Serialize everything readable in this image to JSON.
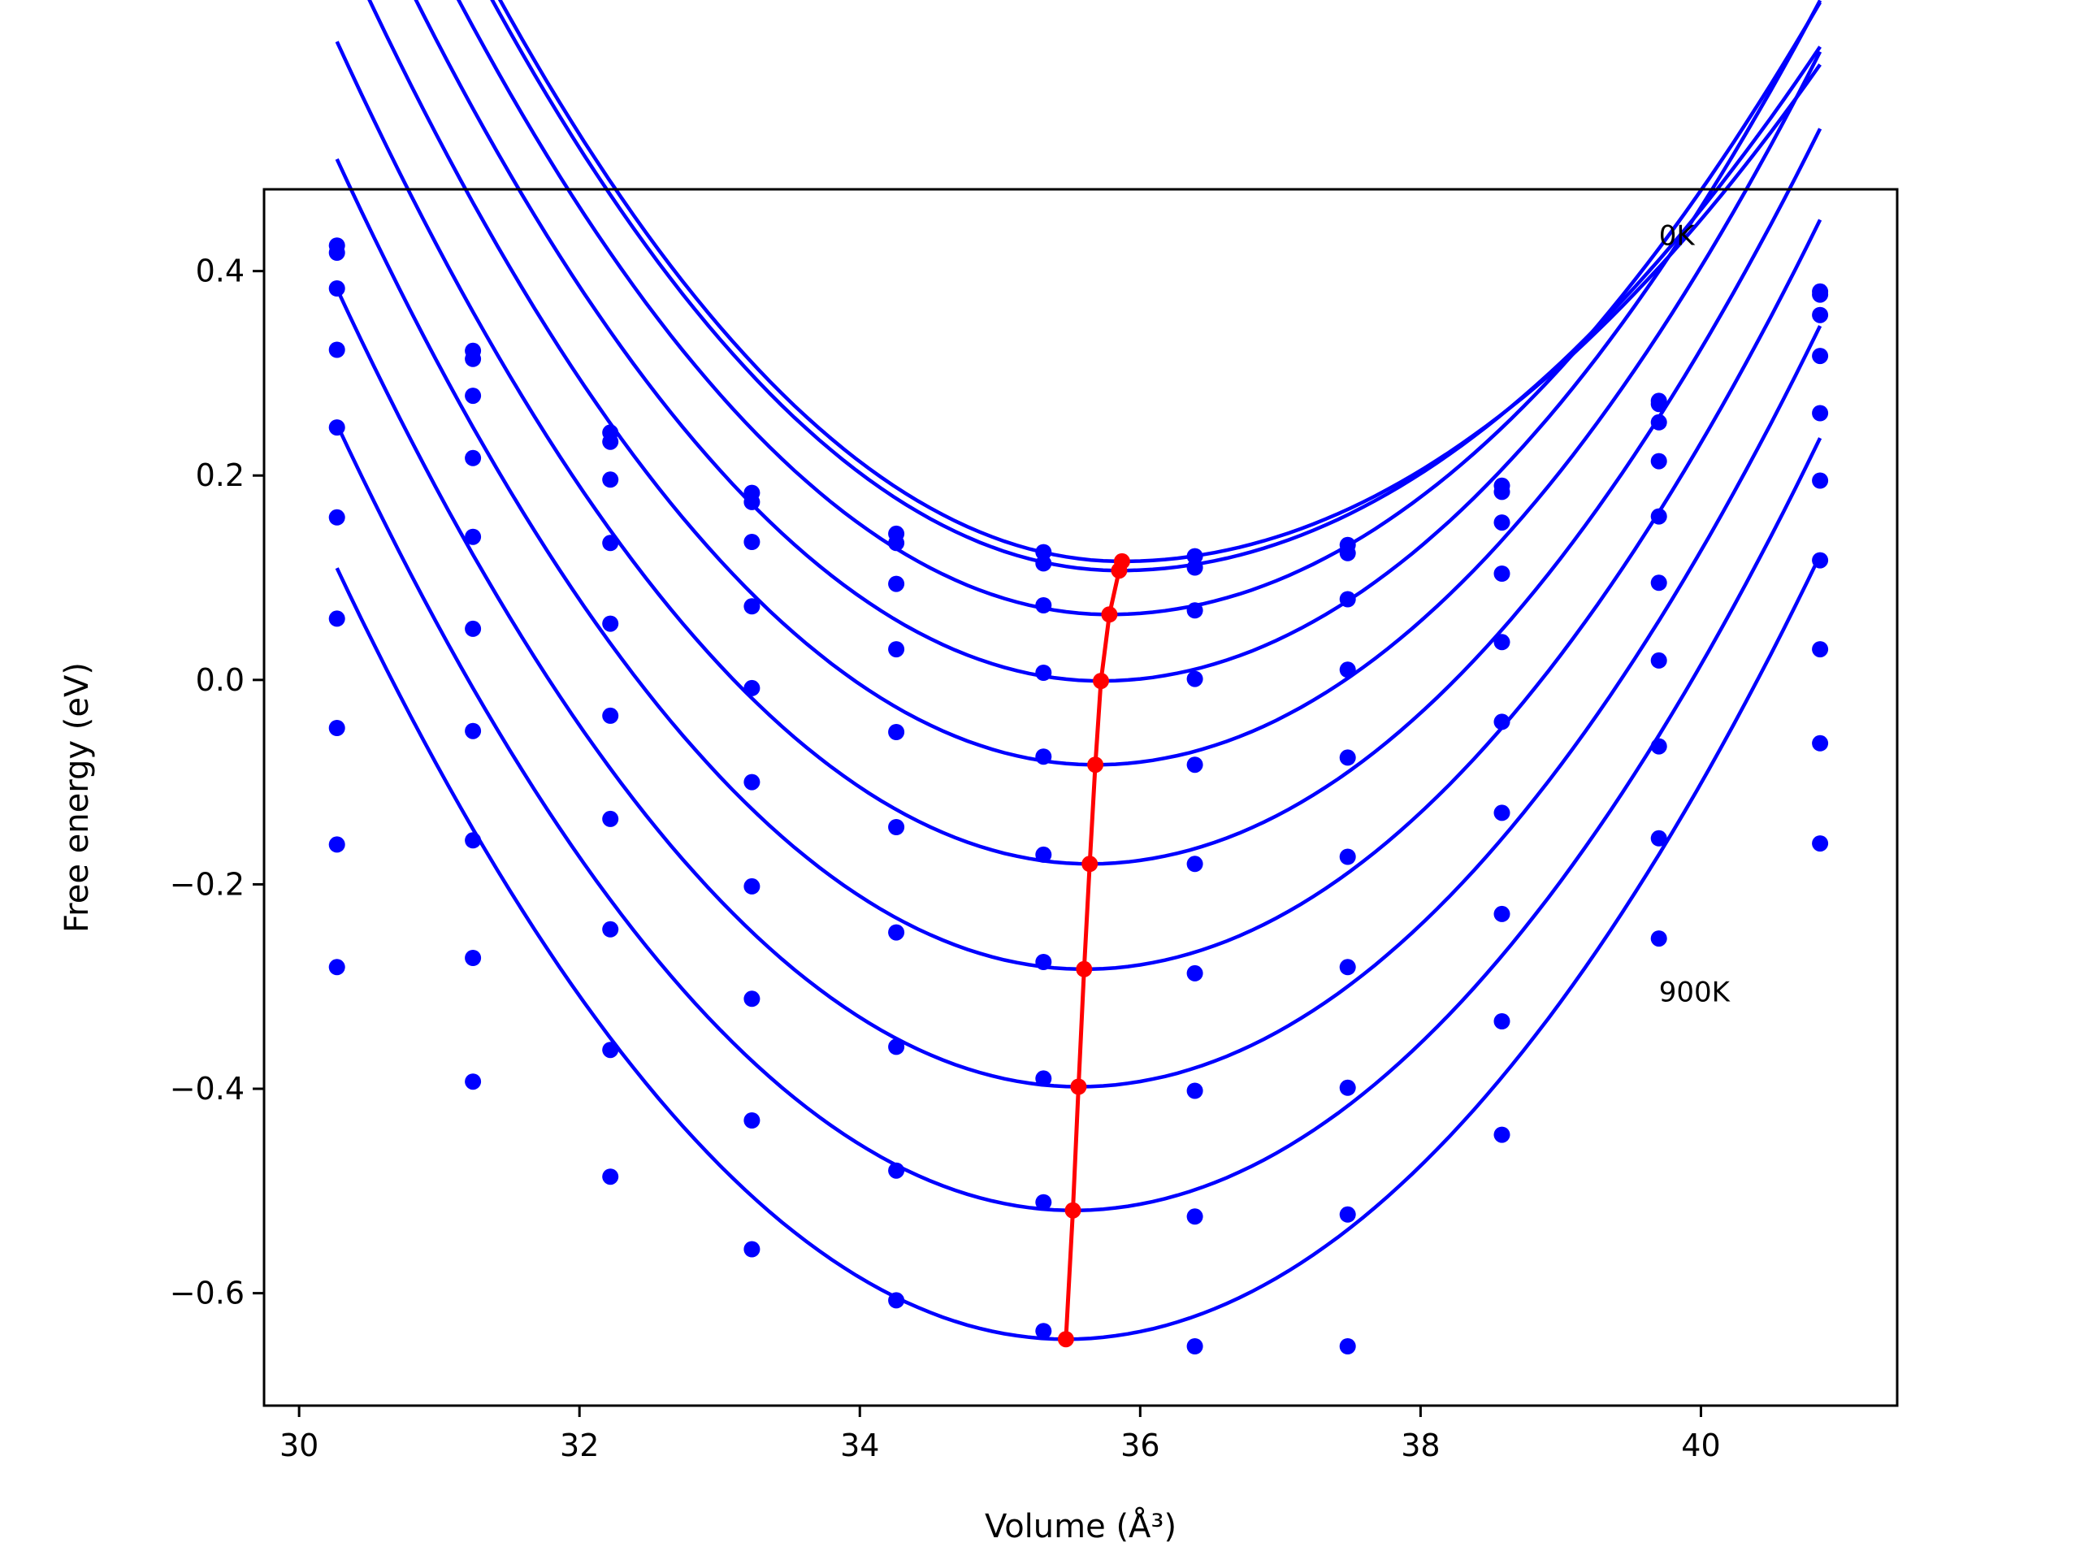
{
  "chart_data": {
    "type": "line",
    "xlabel": "Volume (Å³)",
    "ylabel": "Free energy (eV)",
    "xlim": [
      29.75,
      41.4
    ],
    "ylim": [
      -0.71,
      0.48
    ],
    "xticks": [
      30,
      32,
      34,
      36,
      38,
      40
    ],
    "xtick_labels": [
      "30",
      "32",
      "34",
      "36",
      "38",
      "40"
    ],
    "yticks": [
      -0.6,
      -0.4,
      -0.2,
      0.0,
      0.2,
      0.4
    ],
    "ytick_labels": [
      "−0.6",
      "−0.4",
      "−0.2",
      "0.0",
      "0.2",
      "0.4"
    ],
    "grid": false,
    "annotations": [
      {
        "text": "0K",
        "x": 39.7,
        "y": 0.435
      },
      {
        "text": "900K",
        "x": 39.7,
        "y": -0.305
      }
    ],
    "fit_color": "#0000ff",
    "min_color": "#ff0000",
    "x_points": [
      30.27,
      31.24,
      32.22,
      33.23,
      34.26,
      35.31,
      36.39,
      37.48,
      38.58,
      39.7,
      40.85
    ],
    "series": [
      {
        "v0": 35.87,
        "e0": 0.116,
        "coef_left": 0.0279,
        "coef_right": 0.0196,
        "points": [
          0.425,
          0.322,
          0.242,
          0.183,
          0.143,
          0.125,
          0.121,
          0.132,
          0.19,
          0.273,
          0.38
        ]
      },
      {
        "v0": 35.85,
        "e0": 0.107,
        "coef_left": 0.0279,
        "coef_right": 0.0205,
        "points": [
          0.418,
          0.314,
          0.233,
          0.174,
          0.134,
          0.114,
          0.11,
          0.124,
          0.184,
          0.27,
          0.377
        ]
      },
      {
        "v0": 35.78,
        "e0": 0.064,
        "coef_left": 0.0279,
        "coef_right": 0.0233,
        "points": [
          0.383,
          0.278,
          0.196,
          0.135,
          0.094,
          0.073,
          0.068,
          0.079,
          0.154,
          0.252,
          0.357
        ]
      },
      {
        "v0": 35.72,
        "e0": -0.001,
        "coef_left": 0.0279,
        "coef_right": 0.0253,
        "points": [
          0.323,
          0.217,
          0.134,
          0.072,
          0.03,
          0.007,
          0.001,
          0.01,
          0.104,
          0.214,
          0.317
        ]
      },
      {
        "v0": 35.68,
        "e0": -0.083,
        "coef_left": 0.0279,
        "coef_right": 0.0261,
        "points": [
          0.247,
          0.14,
          0.055,
          -0.008,
          -0.051,
          -0.075,
          -0.083,
          -0.076,
          0.037,
          0.16,
          0.261
        ]
      },
      {
        "v0": 35.64,
        "e0": -0.18,
        "coef_left": 0.0279,
        "coef_right": 0.0265,
        "points": [
          0.159,
          0.05,
          -0.035,
          -0.1,
          -0.144,
          -0.171,
          -0.18,
          -0.173,
          -0.041,
          0.095,
          0.195
        ]
      },
      {
        "v0": 35.6,
        "e0": -0.283,
        "coef_left": 0.0279,
        "coef_right": 0.0266,
        "points": [
          0.06,
          -0.05,
          -0.136,
          -0.202,
          -0.247,
          -0.276,
          -0.287,
          -0.281,
          -0.13,
          0.019,
          0.117
        ]
      },
      {
        "v0": 35.56,
        "e0": -0.398,
        "coef_left": 0.0279,
        "coef_right": 0.0266,
        "points": [
          -0.047,
          -0.157,
          -0.244,
          -0.312,
          -0.359,
          -0.39,
          -0.402,
          -0.399,
          -0.229,
          -0.065,
          0.03
        ]
      },
      {
        "v0": 35.52,
        "e0": -0.519,
        "coef_left": 0.0279,
        "coef_right": 0.0266,
        "points": [
          -0.161,
          -0.272,
          -0.362,
          -0.431,
          -0.48,
          -0.511,
          -0.525,
          -0.523,
          -0.334,
          -0.155,
          -0.062
        ]
      },
      {
        "v0": 35.47,
        "e0": -0.645,
        "coef_left": 0.0279,
        "coef_right": 0.0265,
        "points": [
          -0.281,
          -0.393,
          -0.486,
          -0.557,
          -0.607,
          -0.637,
          -0.652,
          -0.652,
          -0.445,
          -0.253,
          -0.16
        ]
      }
    ],
    "minima": {
      "x": [
        35.87,
        35.85,
        35.78,
        35.72,
        35.68,
        35.64,
        35.6,
        35.56,
        35.52,
        35.47
      ],
      "y": [
        0.116,
        0.107,
        0.064,
        -0.001,
        -0.083,
        -0.18,
        -0.283,
        -0.398,
        -0.519,
        -0.645
      ]
    }
  }
}
